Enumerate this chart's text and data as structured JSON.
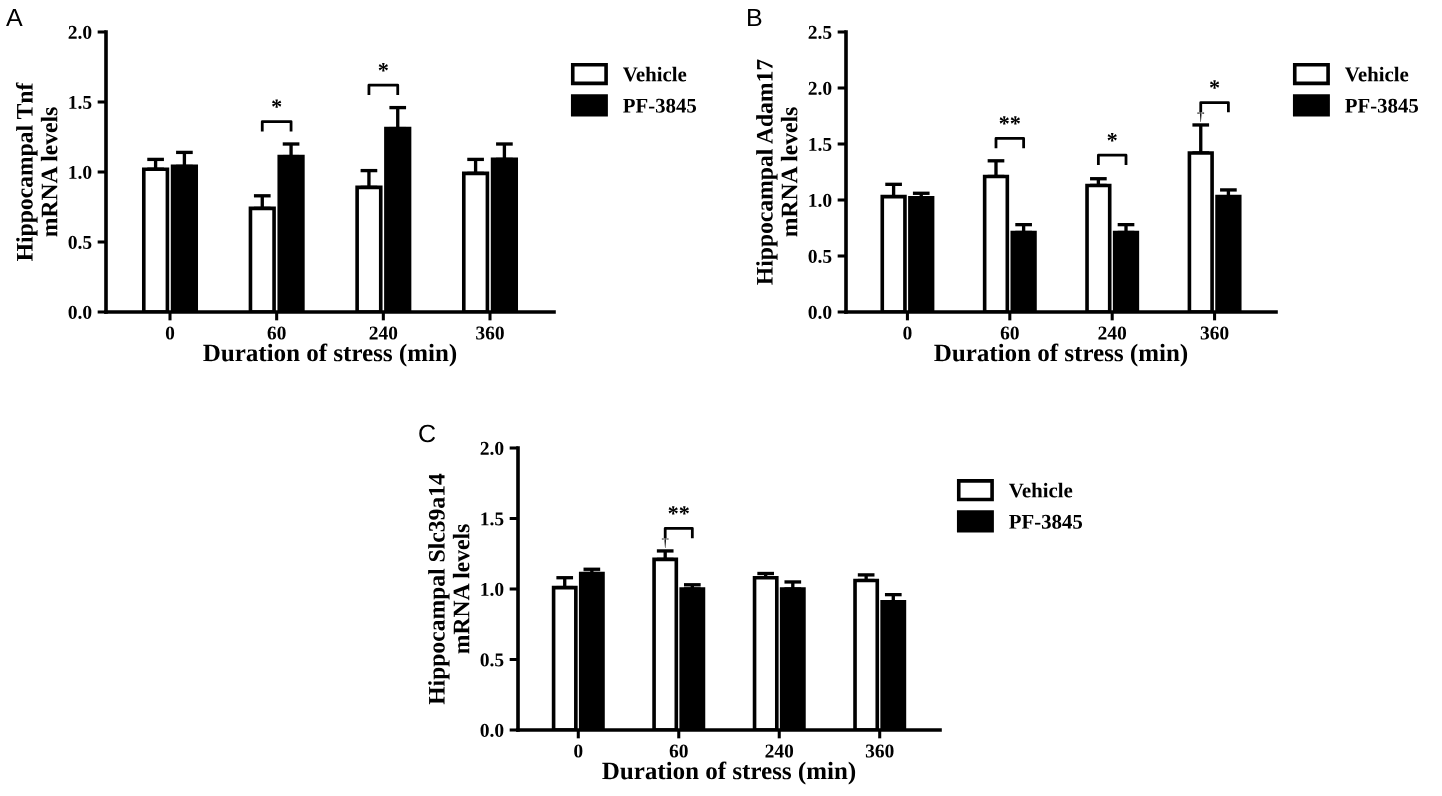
{
  "chart_data": [
    {
      "type": "bar",
      "title": "A",
      "xlabel": "Duration of stress (min)",
      "ylabel": "Hippocampal Tnf\nmRNA levels",
      "categories": [
        "0",
        "60",
        "240",
        "360"
      ],
      "ylim": [
        0,
        2.0
      ],
      "yticks": [
        {
          "value": 0,
          "label": "0.0"
        },
        {
          "value": 0.5,
          "label": "0.5"
        },
        {
          "value": 1.0,
          "label": "1.0"
        },
        {
          "value": 1.5,
          "label": "1.5"
        },
        {
          "value": 2.0,
          "label": "2.0"
        }
      ],
      "legend": "top right",
      "grid": false,
      "series": [
        {
          "name": "Vehicle",
          "color": "#ffffff",
          "values": [
            1.02,
            0.74,
            0.89,
            0.99
          ],
          "errors": [
            [
              1.02,
              1.09
            ],
            [
              0.74,
              0.83
            ],
            [
              0.89,
              1.01
            ],
            [
              0.99,
              1.09
            ]
          ]
        },
        {
          "name": "PF-3845",
          "color": "#000000",
          "values": [
            1.04,
            1.11,
            1.31,
            1.09
          ],
          "errors": [
            [
              1.04,
              1.14
            ],
            [
              1.11,
              1.2
            ],
            [
              1.31,
              1.46
            ],
            [
              1.09,
              1.2
            ]
          ]
        }
      ],
      "annotations": [
        {
          "text": "*",
          "x": "60",
          "y": 1.11
        },
        {
          "text": "*",
          "x": "240",
          "y": 1.31
        }
      ]
    },
    {
      "type": "bar",
      "title": "B",
      "xlabel": "Duration of stress (min)",
      "ylabel": "Hippocampal Adam17\nmRNA levels",
      "categories": [
        "0",
        "60",
        "240",
        "360"
      ],
      "ylim": [
        0,
        2.5
      ],
      "yticks": [
        {
          "value": 0,
          "label": "0.0"
        },
        {
          "value": 0.5,
          "label": "0.5"
        },
        {
          "value": 1.0,
          "label": "1.0"
        },
        {
          "value": 1.5,
          "label": "1.5"
        },
        {
          "value": 2.0,
          "label": "2.0"
        },
        {
          "value": 2.5,
          "label": "2.5"
        }
      ],
      "legend": "top right",
      "grid": false,
      "series": [
        {
          "name": "Vehicle",
          "color": "#ffffff",
          "values": [
            1.03,
            1.21,
            1.13,
            1.42
          ],
          "errors": [
            [
              1.03,
              1.14
            ],
            [
              1.21,
              1.35
            ],
            [
              1.13,
              1.19
            ],
            [
              1.42,
              1.67
            ]
          ]
        },
        {
          "name": "PF-3845",
          "color": "#000000",
          "values": [
            1.02,
            0.71,
            0.71,
            1.03
          ],
          "errors": [
            [
              1.02,
              1.06
            ],
            [
              0.71,
              0.78
            ],
            [
              0.71,
              0.78
            ],
            [
              1.03,
              1.09
            ]
          ]
        }
      ],
      "annotations": [
        {
          "text": "**",
          "x": "60",
          "y": 1.21
        },
        {
          "text": "*",
          "x": "240",
          "y": 1.13
        },
        {
          "text": "*",
          "x": "360",
          "y": 1.42
        },
        {
          "text": "†",
          "x": "360",
          "y": 1.42
        }
      ]
    },
    {
      "type": "bar",
      "title": "C",
      "xlabel": "Duration of stress (min)",
      "ylabel": "Hippocampal Slc39a14\nmRNA levels",
      "categories": [
        "0",
        "60",
        "240",
        "360"
      ],
      "ylim": [
        0,
        2.0
      ],
      "yticks": [
        {
          "value": 0,
          "label": "0.0"
        },
        {
          "value": 0.5,
          "label": "0.5"
        },
        {
          "value": 1.0,
          "label": "1.0"
        },
        {
          "value": 1.5,
          "label": "1.5"
        },
        {
          "value": 2.0,
          "label": "2.0"
        }
      ],
      "legend": "top right",
      "grid": false,
      "series": [
        {
          "name": "Vehicle",
          "color": "#ffffff",
          "values": [
            1.01,
            1.21,
            1.08,
            1.06
          ],
          "errors": [
            [
              1.01,
              1.08
            ],
            [
              1.21,
              1.27
            ],
            [
              1.08,
              1.11
            ],
            [
              1.06,
              1.1
            ]
          ]
        },
        {
          "name": "PF-3845",
          "color": "#000000",
          "values": [
            1.11,
            1.0,
            1.0,
            0.91
          ],
          "errors": [
            [
              1.11,
              1.14
            ],
            [
              1.0,
              1.03
            ],
            [
              1.0,
              1.05
            ],
            [
              0.91,
              0.96
            ]
          ]
        }
      ],
      "annotations": [
        {
          "text": "**",
          "x": "60",
          "y": 1.21
        },
        {
          "text": "†",
          "x": "60",
          "y": 1.21
        }
      ]
    }
  ]
}
